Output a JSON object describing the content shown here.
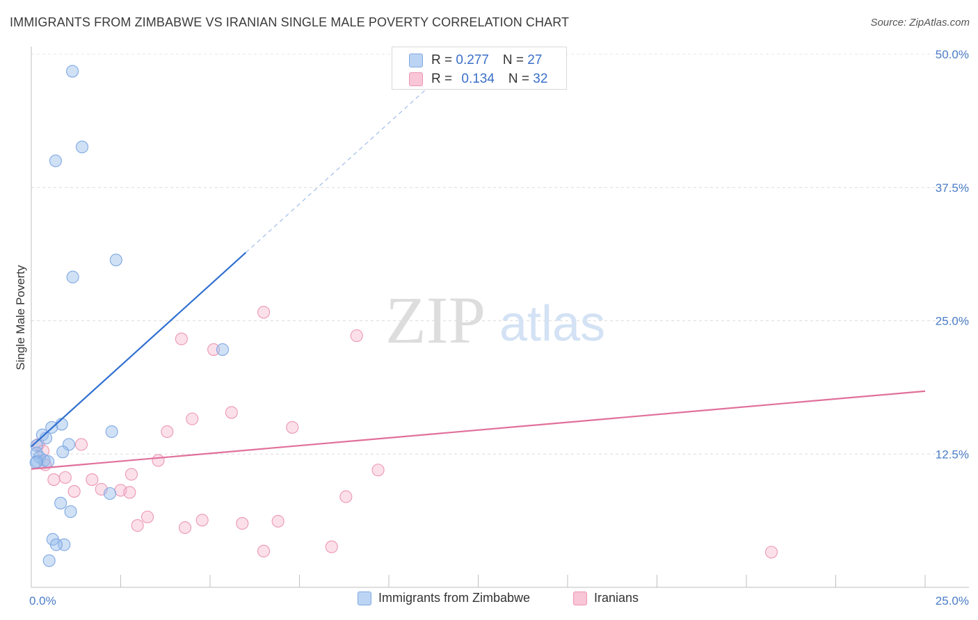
{
  "title": "IMMIGRANTS FROM ZIMBABWE VS IRANIAN SINGLE MALE POVERTY CORRELATION CHART",
  "source": "Source: ZipAtlas.com",
  "watermark": {
    "zip": "ZIP",
    "atlas": "atlas"
  },
  "legend_top": {
    "rows": [
      {
        "r_label": "R = ",
        "r_value": "0.277",
        "n_label": "N = ",
        "n_value": "27"
      },
      {
        "r_label": "R = ",
        "r_value": "0.134",
        "n_label": "N = ",
        "n_value": "32"
      }
    ]
  },
  "legend_bottom": [
    "Immigrants from Zimbabwe",
    "Iranians"
  ],
  "chart_data": {
    "type": "scatter",
    "title": "IMMIGRANTS FROM ZIMBABWE VS IRANIAN SINGLE MALE POVERTY CORRELATION CHART",
    "xlabel": "",
    "ylabel": "Single Male Poverty",
    "xlim": [
      0,
      25
    ],
    "ylim": [
      0,
      50
    ],
    "x_tick_labels": [
      "0.0%",
      "25.0%"
    ],
    "y_ticks": [
      12.5,
      25.0,
      37.5,
      50.0
    ],
    "y_tick_labels": [
      "12.5%",
      "25.0%",
      "37.5%",
      "50.0%"
    ],
    "colors": {
      "zimbabwe": "#5b8fd9",
      "iranians": "#e87aa0",
      "zimbabwe_line": "#2f6fd0",
      "iranians_line": "#e0709a"
    },
    "series": [
      {
        "name": "Immigrants from Zimbabwe",
        "points": [
          [
            1.15,
            48.4
          ],
          [
            1.42,
            41.3
          ],
          [
            0.68,
            40.0
          ],
          [
            2.37,
            30.7
          ],
          [
            1.16,
            29.1
          ],
          [
            5.35,
            22.3
          ],
          [
            0.85,
            15.3
          ],
          [
            0.57,
            15.0
          ],
          [
            0.31,
            14.3
          ],
          [
            0.41,
            14.0
          ],
          [
            2.25,
            14.6
          ],
          [
            1.05,
            13.4
          ],
          [
            0.15,
            13.3
          ],
          [
            0.88,
            12.7
          ],
          [
            0.15,
            12.6
          ],
          [
            0.23,
            12.2
          ],
          [
            0.36,
            11.9
          ],
          [
            0.47,
            11.8
          ],
          [
            0.16,
            11.8
          ],
          [
            0.13,
            11.7
          ],
          [
            2.2,
            8.8
          ],
          [
            0.82,
            7.9
          ],
          [
            1.1,
            7.1
          ],
          [
            0.6,
            4.5
          ],
          [
            0.92,
            4.0
          ],
          [
            0.7,
            4.0
          ],
          [
            0.5,
            2.5
          ]
        ],
        "trend": {
          "x0": 0.0,
          "y0": 13.2,
          "x1": 6.0,
          "y1": 31.4,
          "dash_x1": 11.3,
          "dash_y1": 47.5
        }
      },
      {
        "name": "Iranians",
        "points": [
          [
            6.5,
            25.8
          ],
          [
            9.1,
            23.6
          ],
          [
            4.2,
            23.3
          ],
          [
            5.1,
            22.3
          ],
          [
            5.6,
            16.4
          ],
          [
            4.5,
            15.8
          ],
          [
            7.3,
            15.0
          ],
          [
            3.8,
            14.6
          ],
          [
            1.4,
            13.4
          ],
          [
            0.2,
            13.4
          ],
          [
            0.33,
            12.8
          ],
          [
            3.55,
            11.9
          ],
          [
            0.39,
            11.5
          ],
          [
            9.7,
            11.0
          ],
          [
            2.8,
            10.6
          ],
          [
            0.95,
            10.3
          ],
          [
            0.63,
            10.1
          ],
          [
            1.7,
            10.1
          ],
          [
            1.96,
            9.2
          ],
          [
            2.5,
            9.1
          ],
          [
            1.2,
            9.0
          ],
          [
            2.75,
            8.9
          ],
          [
            8.8,
            8.5
          ],
          [
            3.25,
            6.6
          ],
          [
            4.78,
            6.3
          ],
          [
            6.9,
            6.2
          ],
          [
            5.9,
            6.0
          ],
          [
            2.97,
            5.8
          ],
          [
            4.3,
            5.6
          ],
          [
            8.4,
            3.8
          ],
          [
            6.5,
            3.4
          ],
          [
            20.7,
            3.3
          ]
        ],
        "trend": {
          "x0": 0.0,
          "y0": 11.1,
          "x1": 25.0,
          "y1": 18.4
        }
      }
    ]
  }
}
